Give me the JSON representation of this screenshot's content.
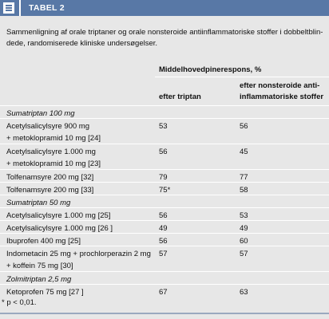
{
  "header": {
    "title": "TABEL 2"
  },
  "caption": "Sammenligning af orale triptaner og orale nonsteroide antiinflammatoriske stoffer i dobbeltblin-\ndede, randomiserede kliniske undersøgelser.",
  "table": {
    "group_header": "Middelhovedpinerespons, %",
    "columns": [
      "efter triptan",
      "efter nonsteroide anti-\ninflammatoriske stoffer"
    ],
    "rows": [
      {
        "group": "Sumatriptan 100 mg"
      },
      {
        "label": "Acetylsalicylsyre 900 mg\n+ metoklopramid 10 mg [24]",
        "values": [
          "53",
          "56"
        ]
      },
      {
        "label": "Acetylsalicylsyre 1.000 mg\n+ metoklopramid 10 mg [23]",
        "values": [
          "56",
          "45"
        ]
      },
      {
        "label": "Tolfenamsyre 200 mg [32]",
        "values": [
          "79",
          "77"
        ]
      },
      {
        "label": "Tolfenamsyre 200 mg [33]",
        "values": [
          "75*",
          "58"
        ]
      },
      {
        "group": "Sumatriptan 50 mg"
      },
      {
        "label": "Acetylsalicylsyre 1.000 mg [25]",
        "values": [
          "56",
          "53"
        ]
      },
      {
        "label": "Acetylsalicylsyre 1.000 mg  [26 ]",
        "values": [
          "49",
          "49"
        ]
      },
      {
        "label": "Ibuprofen 400 mg [25]",
        "values": [
          "56",
          "60"
        ]
      },
      {
        "label": "Indometacin 25 mg + prochlorperazin 2 mg\n+ koffein 75 mg [30]",
        "values": [
          "57",
          "57"
        ]
      },
      {
        "group": "Zolmitriptan 2,5 mg"
      },
      {
        "label": "Ketoprofen 75 mg [27 ]",
        "values": [
          "67",
          "63"
        ]
      }
    ]
  },
  "footnote": "* p < 0,01."
}
